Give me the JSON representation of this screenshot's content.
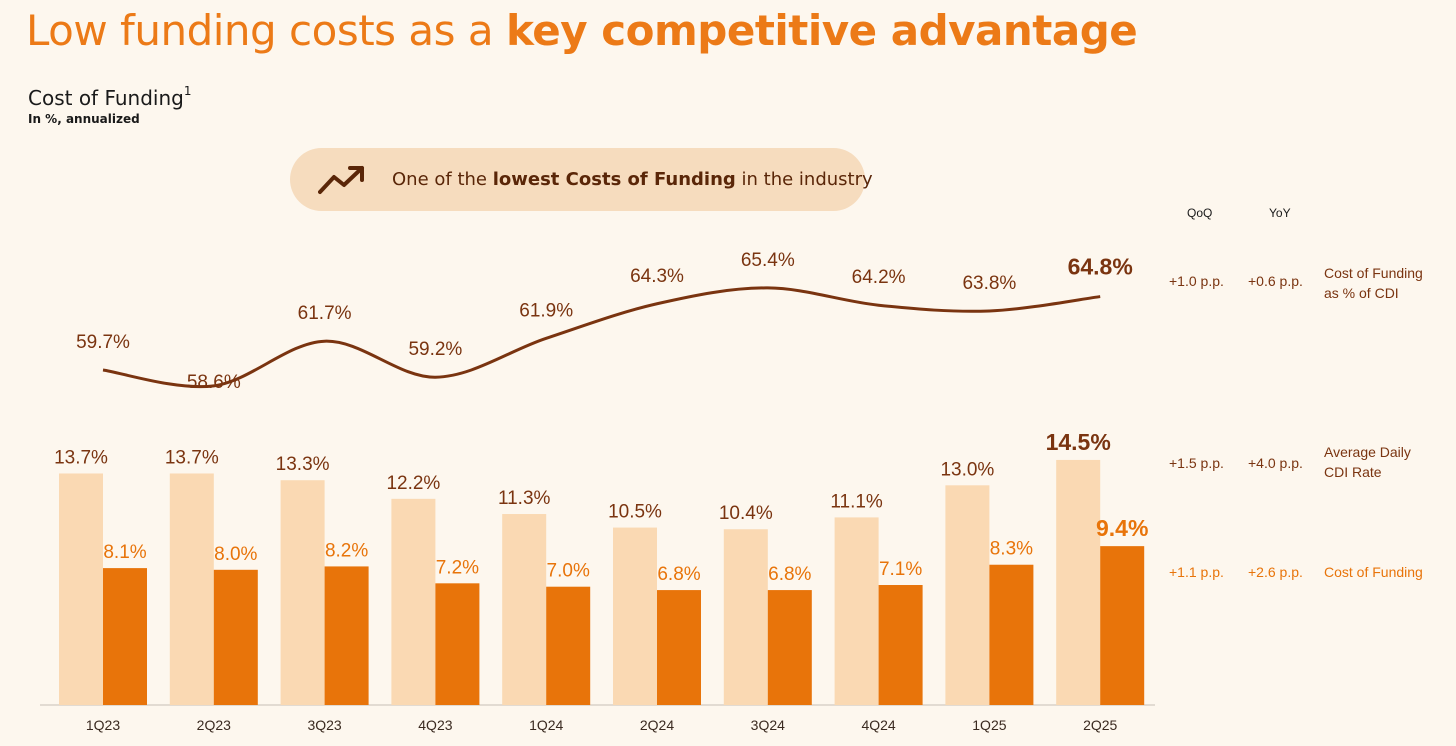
{
  "title": {
    "normal": "Low funding costs as a ",
    "bold": "key competitive advantage"
  },
  "subtitle": {
    "main": "Cost of Funding",
    "footnote": "1",
    "unit": "In %, annualized"
  },
  "callout": {
    "icon": "trending-up-icon",
    "pre": "One of the ",
    "bold": "lowest Costs of Funding",
    "post": " in the industry"
  },
  "chart_data": {
    "type": "bar+line",
    "categories": [
      "1Q23",
      "2Q23",
      "3Q23",
      "4Q23",
      "1Q24",
      "2Q24",
      "3Q24",
      "4Q24",
      "1Q25",
      "2Q25"
    ],
    "series": [
      {
        "name": "Cost of Funding as % of CDI",
        "type": "line",
        "values": [
          59.7,
          58.6,
          61.7,
          59.2,
          61.9,
          64.3,
          65.4,
          64.2,
          63.8,
          64.8
        ],
        "labels": [
          "59.7%",
          "58.6%",
          "61.7%",
          "59.2%",
          "61.9%",
          "64.3%",
          "65.4%",
          "64.2%",
          "63.8%",
          "64.8%"
        ]
      },
      {
        "name": "Average Daily CDI Rate",
        "type": "bar",
        "values": [
          13.7,
          13.7,
          13.3,
          12.2,
          11.3,
          10.5,
          10.4,
          11.1,
          13.0,
          14.5
        ],
        "labels": [
          "13.7%",
          "13.7%",
          "13.3%",
          "12.2%",
          "11.3%",
          "10.5%",
          "10.4%",
          "11.1%",
          "13.0%",
          "14.5%"
        ]
      },
      {
        "name": "Cost of Funding",
        "type": "bar",
        "values": [
          8.1,
          8.0,
          8.2,
          7.2,
          7.0,
          6.8,
          6.8,
          7.1,
          8.3,
          9.4
        ],
        "labels": [
          "8.1%",
          "8.0%",
          "8.2%",
          "7.2%",
          "7.0%",
          "6.8%",
          "6.8%",
          "7.1%",
          "8.3%",
          "9.4%"
        ]
      }
    ],
    "colors": {
      "line": "#7a3410",
      "cdi_bar": "#fad9b3",
      "cof_bar": "#e8740a",
      "cof_label": "#e8740a",
      "cdi_label": "#7a3410",
      "axis": "#d9d2c8"
    },
    "highlight_last": true
  },
  "side_table": {
    "headers": [
      "QoQ",
      "YoY"
    ],
    "rows": [
      {
        "qoq": "+1.0 p.p.",
        "yoy": "+0.6 p.p.",
        "name_line1": "Cost of Funding",
        "name_line2": "as % of CDI",
        "color": "#7a3410"
      },
      {
        "qoq": "+1.5 p.p.",
        "yoy": "+4.0 p.p.",
        "name_line1": "Average Daily",
        "name_line2": "CDI Rate",
        "color": "#7a3410"
      },
      {
        "qoq": "+1.1 p.p.",
        "yoy": "+2.6 p.p.",
        "name_line1": "Cost of Funding",
        "name_line2": "",
        "color": "#e8740a"
      }
    ]
  }
}
